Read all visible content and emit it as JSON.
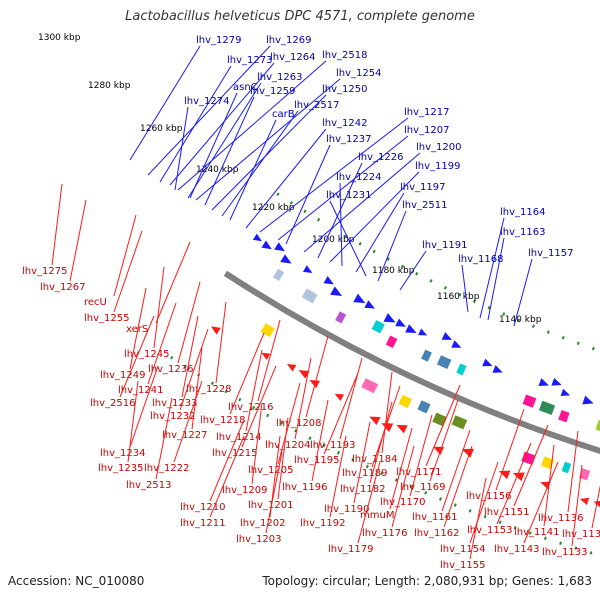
{
  "title": "Lactobacillus helveticus DPC 4571, complete genome",
  "accession": "Accession: NC_010080",
  "summary": "Topology: circular; Length: 2,080,931 bp; Genes: 1,683",
  "colors": {
    "backbone": "#808080",
    "forward_gene": "#1a1aff",
    "reverse_gene": "#ff1a1a",
    "forward_label": "#0000aa",
    "reverse_label": "#cc0000",
    "tick_dots": "#228b22"
  },
  "scale_labels": [
    "1300 kbp",
    "1280 kbp",
    "1260 kbp",
    "1240 kbp",
    "1220 kbp",
    "1200 kbp",
    "1180 kbp",
    "1160 kbp",
    "1140 kbp"
  ],
  "forward_labels": [
    "lhv_1279",
    "lhv_1269",
    "lhv_1273",
    "lhv_1264",
    "lhv_2518",
    "lhv_1263",
    "lhv_1254",
    "asnC",
    "lhv_1274",
    "lhv_1259",
    "lhv_1250",
    "lhv_2517",
    "carB",
    "lhv_1242",
    "lhv_1217",
    "lhv_1207",
    "lhv_1237",
    "lhv_1200",
    "lhv_1226",
    "lhv_1199",
    "lhv_1224",
    "lhv_1197",
    "lhv_1231",
    "lhv_2511",
    "lhv_1164",
    "lhv_1163",
    "lhv_1191",
    "lhv_1168",
    "lhv_1157"
  ],
  "reverse_labels": [
    "lhv_1275",
    "lhv_1267",
    "recU",
    "lhv_1255",
    "xerS",
    "lhv_1245",
    "lhv_1249",
    "lhv_1236",
    "lhv_1241",
    "lhv_2516",
    "lhv_1228",
    "lhv_1233",
    "lhv_1216",
    "lhv_1232",
    "lhv_1218",
    "lhv_1227",
    "lhv_1214",
    "lhv_1208",
    "lhv_1234",
    "lhv_1215",
    "lhv_1235",
    "lhv_1204",
    "lhv_1193",
    "lhv_1222",
    "lhv_1195",
    "lhv_1184",
    "lhv_2513",
    "lhv_1205",
    "lhv_1189",
    "lhv_1171",
    "lhv_1209",
    "lhv_1196",
    "lhv_1182",
    "lhv_1169",
    "lhv_1210",
    "lhv_1201",
    "lhv_1190",
    "lhv_1170",
    "lhv_1156",
    "lhv_1211",
    "lhv_1202",
    "lhv_1192",
    "mmuM",
    "lhv_1161",
    "lhv_1151",
    "lhv_1136",
    "lhv_1203",
    "lhv_1176",
    "lhv_1162",
    "lhv_1153",
    "lhv_1141",
    "lhv_1132",
    "lhv_1179",
    "lhv_1154",
    "lhv_1143",
    "lhv_1133",
    "lhv_1155"
  ]
}
